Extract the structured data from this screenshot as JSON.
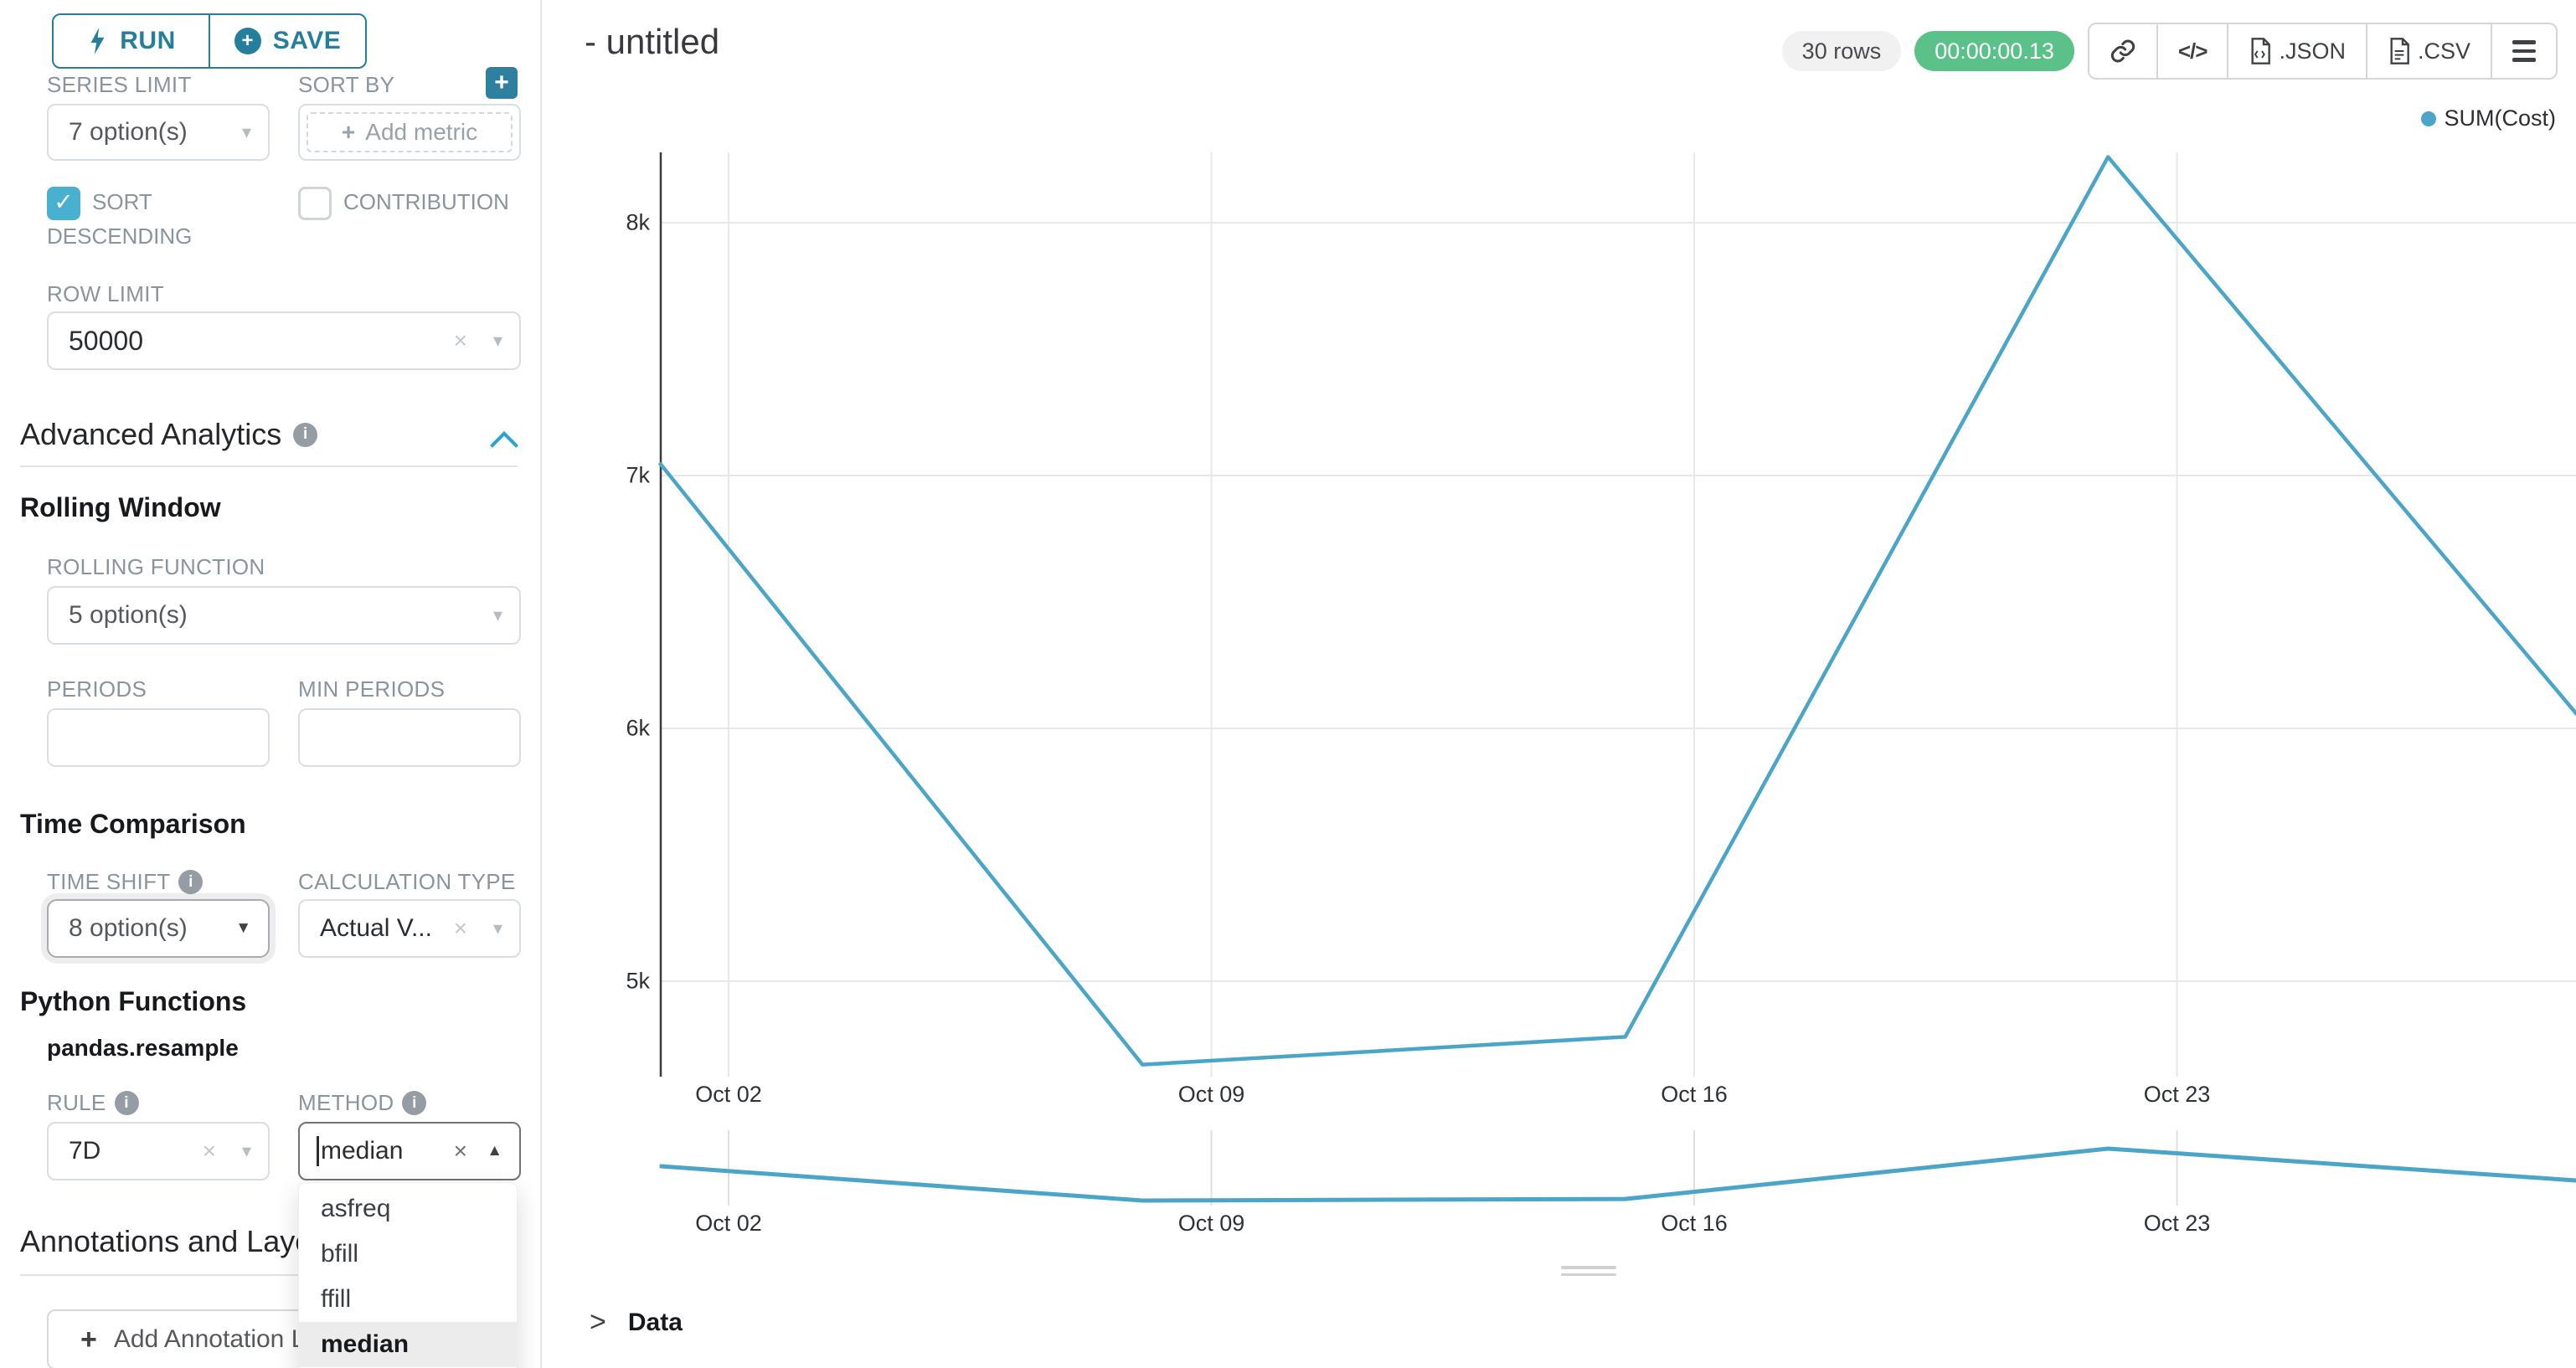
{
  "sidebar": {
    "run_label": "RUN",
    "save_label": "SAVE",
    "series_limit": {
      "label": "SERIES LIMIT",
      "value": "7 option(s)"
    },
    "sort_by": {
      "label": "SORT BY",
      "add_metric_label": "Add metric"
    },
    "sort_descending": {
      "label": "SORT DESCENDING",
      "checked": true
    },
    "contribution": {
      "label": "CONTRIBUTION",
      "checked": false
    },
    "row_limit": {
      "label": "ROW LIMIT",
      "value": "50000"
    },
    "advanced_analytics": {
      "title": "Advanced Analytics"
    },
    "rolling_window": {
      "title": "Rolling Window",
      "rolling_function": {
        "label": "ROLLING FUNCTION",
        "value": "5 option(s)"
      },
      "periods_label": "PERIODS",
      "min_periods_label": "MIN PERIODS"
    },
    "time_comparison": {
      "title": "Time Comparison",
      "time_shift": {
        "label": "TIME SHIFT",
        "value": "8 option(s)"
      },
      "calculation_type": {
        "label": "CALCULATION TYPE",
        "value": "Actual V..."
      }
    },
    "python_functions": {
      "title": "Python Functions",
      "subtitle": "pandas.resample",
      "rule": {
        "label": "RULE",
        "value": "7D"
      },
      "method": {
        "label": "METHOD",
        "value": "median",
        "options": [
          "asfreq",
          "bfill",
          "ffill",
          "median"
        ],
        "highlighted": "median"
      }
    },
    "annotations": {
      "title": "Annotations and Layers",
      "add_button_label": "Add Annotation Layer"
    }
  },
  "header": {
    "title": "- untitled",
    "rows_badge": "30 rows",
    "timer_badge": "00:00:00.13",
    "json_label": ".JSON",
    "csv_label": ".CSV"
  },
  "legend": {
    "label": "SUM(Cost)",
    "color": "#4aa5c9"
  },
  "chart_data": {
    "type": "line",
    "title": "",
    "series": [
      {
        "name": "SUM(Cost)",
        "x": [
          "Oct 01",
          "Oct 08",
          "Oct 15",
          "Oct 22",
          "Oct 29"
        ],
        "values": [
          7050,
          4670,
          4780,
          8260,
          5990
        ]
      }
    ],
    "x_tick_labels": [
      "Oct 02",
      "Oct 09",
      "Oct 16",
      "Oct 23"
    ],
    "y_tick_labels": [
      "8k",
      "7k",
      "6k",
      "5k"
    ],
    "y_tick_values": [
      8000,
      7000,
      6000,
      5000
    ],
    "ylim": [
      4550,
      8350
    ],
    "grid": true,
    "legend_position": "top-right",
    "line_color": "#4aa5c9",
    "has_preview_strip": true,
    "preview_note": "same series repeated in small brush strip below main chart"
  },
  "data_panel": {
    "label": "Data"
  }
}
